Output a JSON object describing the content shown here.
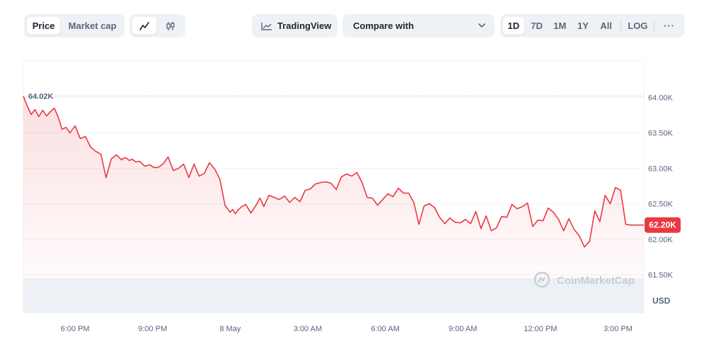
{
  "toolbar": {
    "price_tab": "Price",
    "market_cap_tab": "Market cap",
    "line_icon": "line-chart-icon",
    "candle_icon": "candlestick-icon",
    "tradingview_label": "TradingView",
    "tradingview_icon": "tradingview-icon",
    "compare_label": "Compare with",
    "compare_icon": "chevron-down-icon",
    "ranges": [
      "1D",
      "7D",
      "1M",
      "1Y",
      "All"
    ],
    "active_range": "1D",
    "log_label": "LOG",
    "more_label": "···"
  },
  "watermark": "CoinMarketCap",
  "colors": {
    "line": "#ea3943",
    "badge": "#ea3943",
    "axis_text": "#58667e"
  },
  "chart_data": {
    "type": "area",
    "currency": "USD",
    "high_label": "64.02K",
    "high_value": 64020,
    "current_label": "62.20K",
    "current_value": 62200,
    "y_ticks": [
      "64.00K",
      "63.50K",
      "63.00K",
      "62.50K",
      "62.00K",
      "61.50K"
    ],
    "y_tick_values": [
      64000,
      63500,
      63000,
      62500,
      62000,
      61500
    ],
    "ylim": [
      61500,
      64500
    ],
    "x_ticks": [
      "6:00 PM",
      "9:00 PM",
      "8 May",
      "3:00 AM",
      "6:00 AM",
      "9:00 AM",
      "12:00 PM",
      "3:00 PM"
    ],
    "x_tick_hours": [
      2,
      5,
      8,
      11,
      14,
      17,
      20,
      23
    ],
    "series": [
      {
        "x": [
          0,
          0.15,
          0.3,
          0.45,
          0.6,
          0.75,
          0.9,
          1.05,
          1.2,
          1.35,
          1.5,
          1.65,
          1.8,
          2.0,
          2.2,
          2.4,
          2.6,
          2.8,
          3.0,
          3.2,
          3.4,
          3.6,
          3.8,
          3.9,
          4.0,
          4.1,
          4.2,
          4.35,
          4.5,
          4.7,
          4.9,
          5.0,
          5.2,
          5.4,
          5.6,
          5.8,
          6.0,
          6.2,
          6.4,
          6.6,
          6.8,
          7.0,
          7.2,
          7.4,
          7.6,
          7.8,
          8.0,
          8.1,
          8.2,
          8.3,
          8.45,
          8.6,
          8.8,
          9.0,
          9.15,
          9.3,
          9.5,
          9.7,
          9.9,
          10.1,
          10.3,
          10.5,
          10.7,
          10.9,
          11.1,
          11.3,
          11.5,
          11.7,
          11.9,
          12.1,
          12.3,
          12.5,
          12.7,
          12.9,
          13.1,
          13.3,
          13.5,
          13.7,
          13.9,
          14.1,
          14.3,
          14.5,
          14.7,
          14.9,
          15.1,
          15.3,
          15.5,
          15.7,
          15.9,
          16.1,
          16.3,
          16.5,
          16.7,
          16.9,
          17.1,
          17.3,
          17.5,
          17.7,
          17.9,
          18.1,
          18.3,
          18.5,
          18.7,
          18.9,
          19.1,
          19.3,
          19.5,
          19.7,
          19.9,
          20.1,
          20.3,
          20.5,
          20.7,
          20.9,
          21.1,
          21.3,
          21.5,
          21.7,
          21.9,
          22.1,
          22.3,
          22.5,
          22.7,
          22.9,
          23.1,
          23.3,
          23.5,
          23.7,
          23.9,
          24.0
        ],
        "values": [
          64020,
          63880,
          63760,
          63830,
          63730,
          63820,
          63740,
          63800,
          63850,
          63720,
          63550,
          63580,
          63500,
          63600,
          63420,
          63450,
          63300,
          63240,
          63200,
          62870,
          63130,
          63190,
          63120,
          63150,
          63140,
          63110,
          63130,
          63090,
          63100,
          63030,
          63050,
          63020,
          63010,
          63060,
          63160,
          62970,
          63000,
          63060,
          62870,
          63060,
          62890,
          62930,
          63080,
          62990,
          62850,
          62480,
          62380,
          62420,
          62360,
          62410,
          62460,
          62490,
          62370,
          62480,
          62580,
          62460,
          62620,
          62590,
          62560,
          62610,
          62520,
          62590,
          62530,
          62690,
          62710,
          62780,
          62800,
          62810,
          62790,
          62700,
          62880,
          62920,
          62890,
          62940,
          62800,
          62590,
          62580,
          62480,
          62560,
          62640,
          62600,
          62720,
          62650,
          62650,
          62520,
          62210,
          62470,
          62500,
          62450,
          62310,
          62220,
          62300,
          62240,
          62230,
          62280,
          62220,
          62390,
          62150,
          62330,
          62120,
          62160,
          62320,
          62310,
          62490,
          62430,
          62460,
          62510,
          62180,
          62270,
          62260,
          62440,
          62380,
          62280,
          62120,
          62290,
          62140,
          62050,
          61890,
          61970,
          62400,
          62250,
          62620,
          62500,
          62730,
          62690,
          62210,
          62200,
          62200,
          62200,
          62200
        ]
      }
    ]
  }
}
